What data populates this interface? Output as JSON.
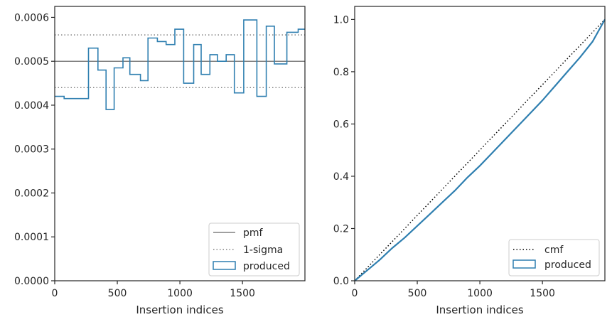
{
  "chart_data": [
    {
      "type": "step",
      "xlabel": "Insertion indices",
      "ylabel": "",
      "xlim": [
        0,
        1999
      ],
      "ylim": [
        0,
        0.000625
      ],
      "xticks": [
        0,
        500,
        1000,
        1500
      ],
      "yticks": [
        0.0,
        0.0001,
        0.0002,
        0.0003,
        0.0004,
        0.0005,
        0.0006
      ],
      "xtick_labels": [
        "0",
        "500",
        "1000",
        "1500"
      ],
      "ytick_labels": [
        "0.0000",
        "0.0001",
        "0.0002",
        "0.0003",
        "0.0004",
        "0.0005",
        "0.0006"
      ],
      "pmf": 0.0005,
      "sigma_upper": 0.00056,
      "sigma_lower": 0.00044,
      "bin_edges": [
        0,
        75,
        200,
        270,
        345,
        410,
        475,
        545,
        600,
        685,
        745,
        820,
        890,
        960,
        1030,
        1110,
        1170,
        1240,
        1300,
        1370,
        1435,
        1510,
        1615,
        1690,
        1755,
        1855,
        1945,
        1999
      ],
      "produced_values": [
        0.00042,
        0.000415,
        0.000415,
        0.00053,
        0.00048,
        0.00039,
        0.000485,
        0.000508,
        0.00047,
        0.000456,
        0.000553,
        0.000545,
        0.000538,
        0.000573,
        0.00045,
        0.000538,
        0.00047,
        0.000515,
        0.0005,
        0.000515,
        0.000428,
        0.000594,
        0.00042,
        0.00058,
        0.000494,
        0.000566,
        0.000573
      ],
      "legend": {
        "position": "lower right",
        "entries": [
          {
            "label": "pmf",
            "style": "solid-line",
            "color": "#808080"
          },
          {
            "label": "1-sigma",
            "style": "dotted-line",
            "color": "#808080"
          },
          {
            "label": "produced",
            "style": "box",
            "color": "#2f7fb0"
          }
        ]
      }
    },
    {
      "type": "line",
      "xlabel": "Insertion indices",
      "ylabel": "",
      "xlim": [
        0,
        1999
      ],
      "ylim": [
        0,
        1.05
      ],
      "xticks": [
        0,
        500,
        1000,
        1500
      ],
      "yticks": [
        0.0,
        0.2,
        0.4,
        0.6,
        0.8,
        1.0
      ],
      "xtick_labels": [
        "0",
        "500",
        "1000",
        "1500"
      ],
      "ytick_labels": [
        "0.0",
        "0.2",
        "0.4",
        "0.6",
        "0.8",
        "1.0"
      ],
      "cmf": {
        "x": [
          0,
          1999
        ],
        "y": [
          0,
          1
        ]
      },
      "produced": {
        "x": [
          0,
          100,
          200,
          300,
          400,
          500,
          600,
          700,
          800,
          900,
          1000,
          1100,
          1200,
          1300,
          1400,
          1500,
          1600,
          1700,
          1800,
          1900,
          1999
        ],
        "y": [
          0,
          0.04,
          0.08,
          0.125,
          0.165,
          0.21,
          0.255,
          0.3,
          0.345,
          0.395,
          0.44,
          0.49,
          0.54,
          0.59,
          0.64,
          0.69,
          0.745,
          0.8,
          0.855,
          0.915,
          1.0
        ]
      },
      "legend": {
        "position": "lower right",
        "entries": [
          {
            "label": "cmf",
            "style": "dotted-line",
            "color": "#000000"
          },
          {
            "label": "produced",
            "style": "box",
            "color": "#2f7fb0"
          }
        ]
      }
    }
  ],
  "colors": {
    "produced": "#2f7fb0",
    "pmf": "#808080",
    "sigma": "#808080",
    "cmf": "#000000",
    "axes": "#262626"
  }
}
